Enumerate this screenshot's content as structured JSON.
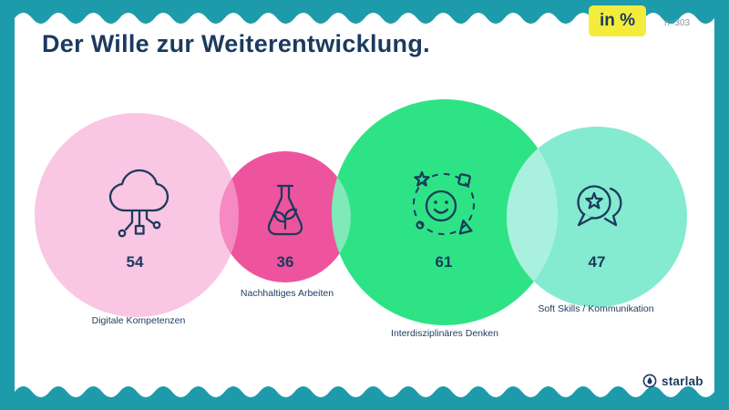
{
  "header": {
    "title": "Der Wille zur Weiterentwicklung.",
    "unit_badge": "in %",
    "sample_size": "n=303"
  },
  "chart_data": {
    "type": "bubble",
    "title": "Der Wille zur Weiterentwicklung.",
    "unit": "%",
    "sample_label": "n=303",
    "legend_position": "none",
    "series": [
      {
        "name": "Digitale Kompetenzen",
        "value": 54,
        "color": "#F9C6E3",
        "icon": "cloud-network-icon"
      },
      {
        "name": "Nachhaltiges Arbeiten",
        "value": 36,
        "color": "#EE549D",
        "icon": "flask-leaves-icon"
      },
      {
        "name": "Interdisziplinäres Denken",
        "value": 61,
        "color": "#2EE385",
        "icon": "smiley-shapes-icon"
      },
      {
        "name": "Soft Skills / Kommunikation",
        "value": 47,
        "color": "#84EAD0",
        "icon": "chat-bubbles-star-icon"
      }
    ]
  },
  "footer": {
    "brand": "starlab"
  },
  "colors": {
    "background": "#1E9BAA",
    "card": "#FFFFFF",
    "ink": "#1B3A5E",
    "badge_bg": "#F4EC3C",
    "muted_text": "#8A98A3",
    "overlap_pink": "#F48AC1",
    "overlap_green": "#7FE9B8",
    "overlap_mint": "#A9F1DE"
  }
}
